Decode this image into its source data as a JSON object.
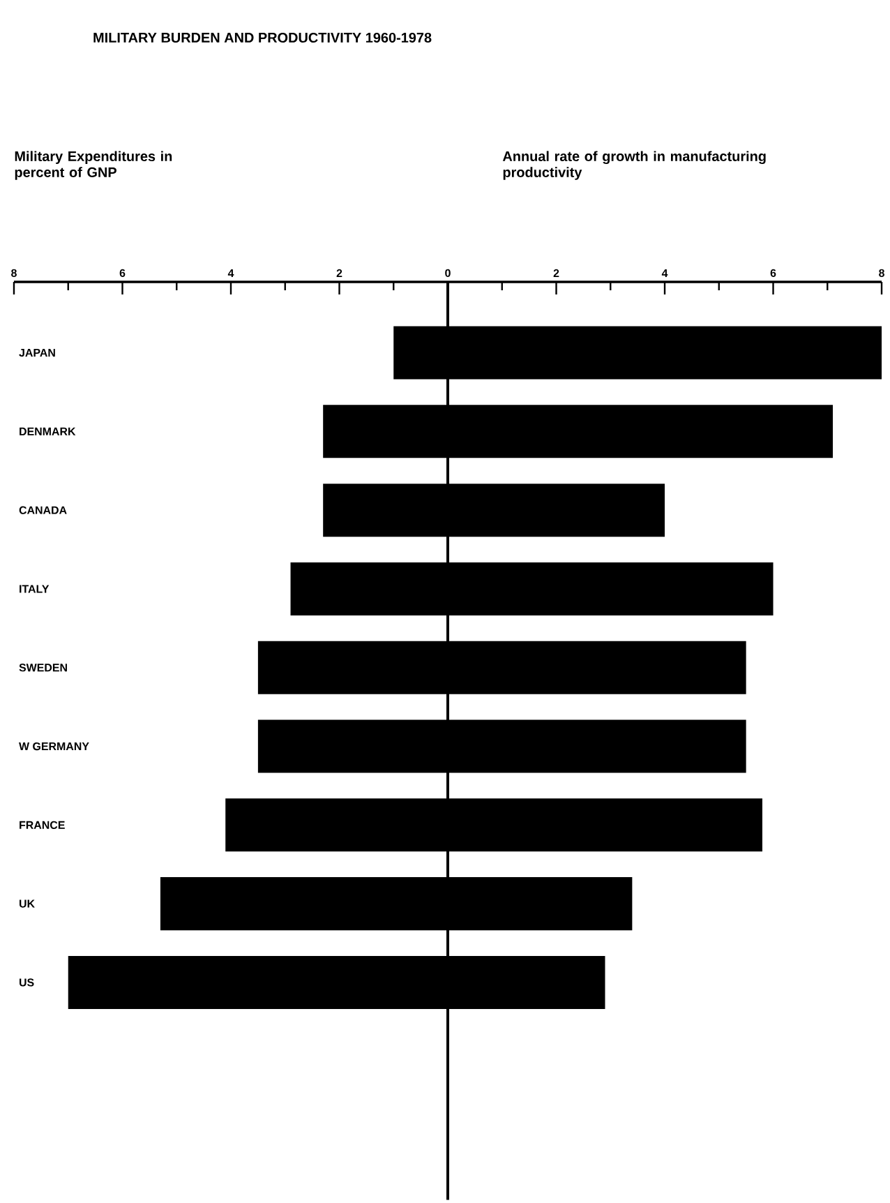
{
  "chart_data": {
    "type": "bar",
    "orientation": "horizontal",
    "title": "MILITARY BURDEN AND PRODUCTIVITY 1960-1978",
    "annotations": [
      "Military Expenditures in percent of GNP",
      "Annual rate of growth in manufacturing productivity"
    ],
    "stacked": true,
    "categories": [
      "JAPAN",
      "DENMARK",
      "CANADA",
      "ITALY",
      "SWEDEN",
      "W GERMANY",
      "FRANCE",
      "UK",
      "US"
    ],
    "series": [
      {
        "color": "#000000",
        "values": [
          -1.0,
          -2.3,
          -2.3,
          -2.9,
          -3.5,
          -3.5,
          -4.1,
          -5.3,
          -7.0
        ]
      },
      {
        "color": "#000000",
        "values": [
          8.0,
          7.1,
          4.0,
          6.0,
          5.5,
          5.5,
          5.8,
          3.4,
          2.9
        ]
      }
    ],
    "xlim": [
      -8,
      8
    ],
    "xticks": [
      {
        "value": -8,
        "label": "8"
      },
      {
        "value": -6,
        "label": "6"
      },
      {
        "value": -4,
        "label": "4"
      },
      {
        "value": -2,
        "label": "2"
      },
      0,
      2,
      4,
      6,
      8
    ]
  }
}
